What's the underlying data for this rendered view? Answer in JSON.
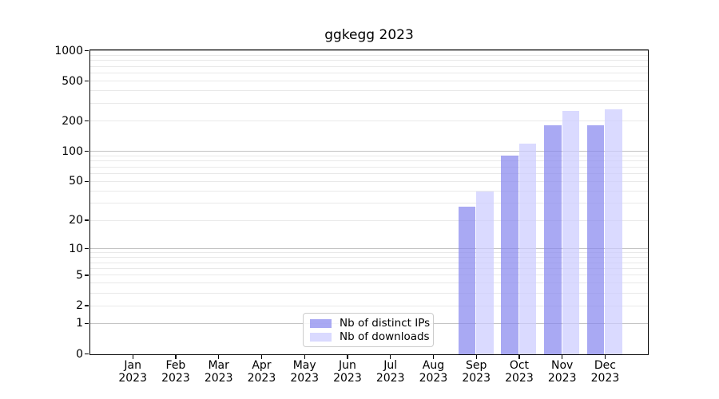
{
  "figure": {
    "background": "#ffffff"
  },
  "chart_data": {
    "type": "bar",
    "title": "ggkegg 2023",
    "categories": [
      "Jan 2023",
      "Feb 2023",
      "Mar 2023",
      "Apr 2023",
      "May 2023",
      "Jun 2023",
      "Jul 2023",
      "Aug 2023",
      "Sep 2023",
      "Oct 2023",
      "Nov 2023",
      "Dec 2023"
    ],
    "x_tick_months": [
      "Jan",
      "Feb",
      "Mar",
      "Apr",
      "May",
      "Jun",
      "Jul",
      "Aug",
      "Sep",
      "Oct",
      "Nov",
      "Dec"
    ],
    "x_tick_year": "2023",
    "series": [
      {
        "name": "Nb of distinct IPs",
        "color": "#8888ee",
        "fill": "rgba(136,136,238,0.72)",
        "values": [
          0,
          0,
          0,
          0,
          0,
          0,
          0,
          0,
          28,
          91,
          183,
          183
        ]
      },
      {
        "name": "Nb of downloads",
        "color": "#ccccff",
        "fill": "rgba(204,204,255,0.72)",
        "values": [
          0,
          0,
          0,
          0,
          0,
          0,
          0,
          0,
          40,
          120,
          256,
          263
        ]
      }
    ],
    "yscale": "log1p",
    "y_ticks": [
      0,
      1,
      2,
      5,
      10,
      20,
      50,
      100,
      200,
      500,
      1000
    ],
    "ylim": [
      0,
      1200
    ],
    "grid": true,
    "grid_major_color": "#c3c3c3",
    "grid_minor_color": "#e9e9e9",
    "legend_position": "lower center",
    "spine_color": "#000000"
  }
}
